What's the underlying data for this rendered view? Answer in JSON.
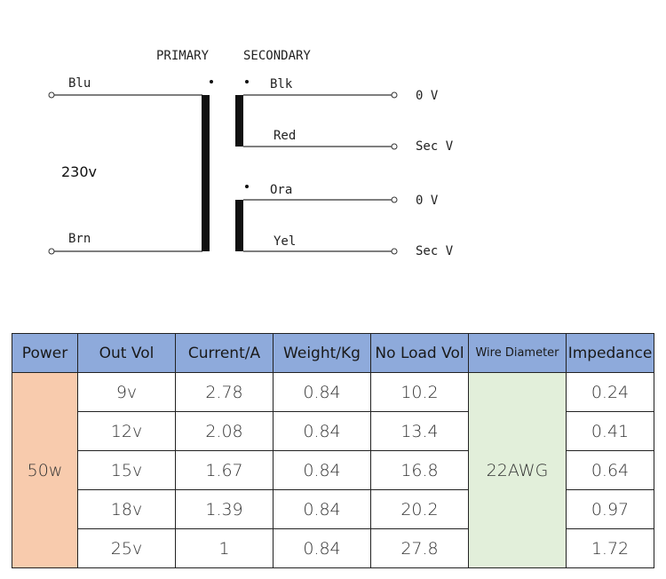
{
  "diagram": {
    "primary_label": "PRIMARY",
    "secondary_label": "SECONDARY",
    "primary_voltage": "230v",
    "primary_wires": {
      "top": "Blu",
      "bottom": "Brn"
    },
    "secondary_windings": [
      {
        "top_wire": "Blk",
        "bottom_wire": "Red",
        "top_output": "0 V",
        "bottom_output": "Sec V"
      },
      {
        "top_wire": "Ora",
        "bottom_wire": "Yel",
        "top_output": "0 V",
        "bottom_output": "Sec V"
      }
    ]
  },
  "table": {
    "headers": [
      "Power",
      "Out Vol",
      "Current/A",
      "Weight/Kg",
      "No Load Vol",
      "Wire Diameter",
      "Impedance"
    ],
    "power": "50w",
    "wire_diameter": "22AWG",
    "rows": [
      {
        "out_vol": "9v",
        "current": "2.78",
        "weight": "0.84",
        "no_load_vol": "10.2",
        "impedance": "0.24"
      },
      {
        "out_vol": "12v",
        "current": "2.08",
        "weight": "0.84",
        "no_load_vol": "13.4",
        "impedance": "0.41"
      },
      {
        "out_vol": "15v",
        "current": "1.67",
        "weight": "0.84",
        "no_load_vol": "16.8",
        "impedance": "0.64"
      },
      {
        "out_vol": "18v",
        "current": "1.39",
        "weight": "0.84",
        "no_load_vol": "20.2",
        "impedance": "0.97"
      },
      {
        "out_vol": "25v",
        "current": "1",
        "weight": "0.84",
        "no_load_vol": "27.8",
        "impedance": "1.72"
      }
    ]
  }
}
